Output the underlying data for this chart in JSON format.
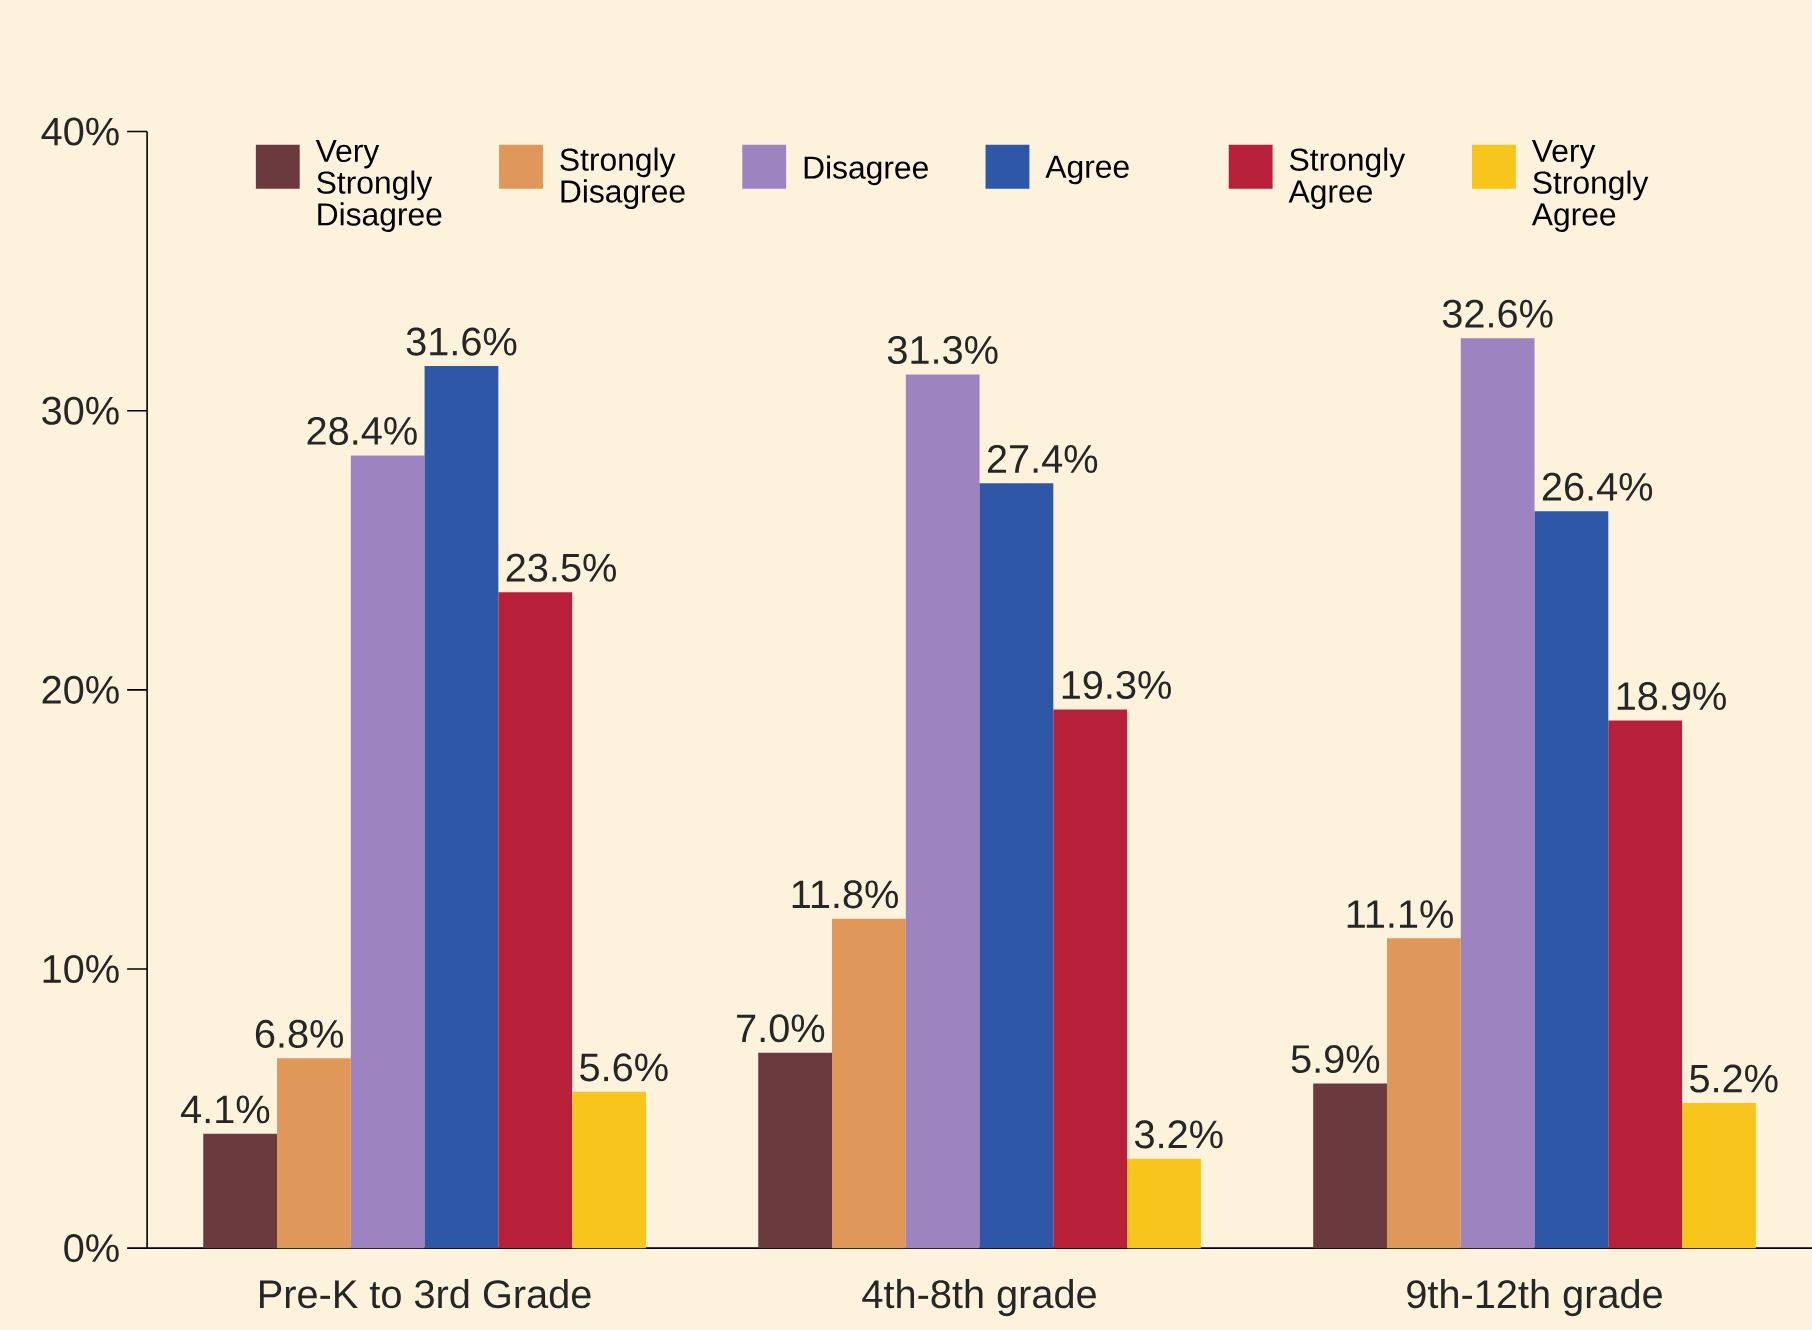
{
  "chart_data": {
    "type": "bar",
    "categories": [
      "Pre-K to 3rd Grade",
      "4th-8th grade",
      "9th-12th grade"
    ],
    "series": [
      {
        "name": "Very Strongly Disagree",
        "color": "#6b3a3e",
        "values": [
          4.1,
          7.0,
          5.9
        ],
        "value_labels": [
          "4.1%",
          "7.0%",
          "5.9%"
        ]
      },
      {
        "name": "Strongly Disagree",
        "color": "#e0975a",
        "values": [
          6.8,
          11.8,
          11.1
        ],
        "value_labels": [
          "6.8%",
          "11.8%",
          "11.1%"
        ]
      },
      {
        "name": "Disagree",
        "color": "#9d83c0",
        "values": [
          28.4,
          31.3,
          32.6
        ],
        "value_labels": [
          "28.4%",
          "31.3%",
          "32.6%"
        ]
      },
      {
        "name": "Agree",
        "color": "#2f57a8",
        "values": [
          31.6,
          27.4,
          26.4
        ],
        "value_labels": [
          "31.6%",
          "27.4%",
          "26.4%"
        ]
      },
      {
        "name": "Strongly Agree",
        "color": "#b81f38",
        "values": [
          23.5,
          19.3,
          18.9
        ],
        "value_labels": [
          "23.5%",
          "19.3%",
          "18.9%"
        ]
      },
      {
        "name": "Very Strongly Agree",
        "color": "#f8c51c",
        "values": [
          5.6,
          3.2,
          5.2
        ],
        "value_labels": [
          "5.6%",
          "3.2%",
          "5.2%"
        ]
      }
    ],
    "ylim": [
      0,
      40
    ],
    "yticks": [
      {
        "value": 0,
        "label": "0%"
      },
      {
        "value": 10,
        "label": "10%"
      },
      {
        "value": 20,
        "label": "20%"
      },
      {
        "value": 30,
        "label": "30%"
      },
      {
        "value": 40,
        "label": "40%"
      }
    ],
    "grid": false,
    "legend": "top"
  }
}
